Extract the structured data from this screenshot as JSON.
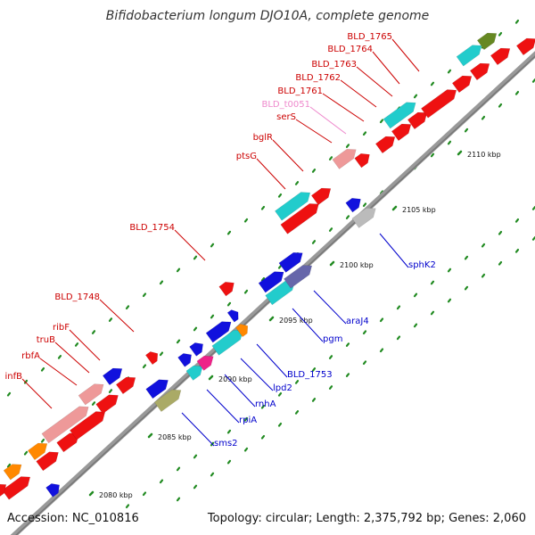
{
  "title": "Bifidobacterium longum DJO10A, complete genome",
  "accession": "Accession: NC_010816",
  "summary": "Topology: circular; Length: 2,375,792 bp; Genes: 2,060",
  "colors": {
    "backbone": "#999999",
    "tick": "#228b22",
    "label_forward": "#cc0000",
    "label_reverse": "#0000cc",
    "label_rna": "#ee88cc"
  },
  "ticks": [
    {
      "label": "2080 kbp"
    },
    {
      "label": "2085 kbp"
    },
    {
      "label": "2090 kbp"
    },
    {
      "label": "2095 kbp"
    },
    {
      "label": "2100 kbp"
    },
    {
      "label": "2105 kbp"
    },
    {
      "label": "2110 kbp"
    }
  ],
  "forward_labels": [
    "infB",
    "rbfA",
    "truB",
    "ribF",
    "BLD_1748",
    "BLD_1754",
    "ptsG",
    "bglR",
    "serS",
    "BLD_1761",
    "BLD_1762",
    "BLD_1763",
    "BLD_1764",
    "BLD_1765"
  ],
  "rna_labels": [
    "BLD_t0051"
  ],
  "reverse_labels": [
    "sms2",
    "rpiA",
    "rnhA",
    "lpd2",
    "BLD_1753",
    "pgm",
    "araJ4",
    "sphK2"
  ]
}
